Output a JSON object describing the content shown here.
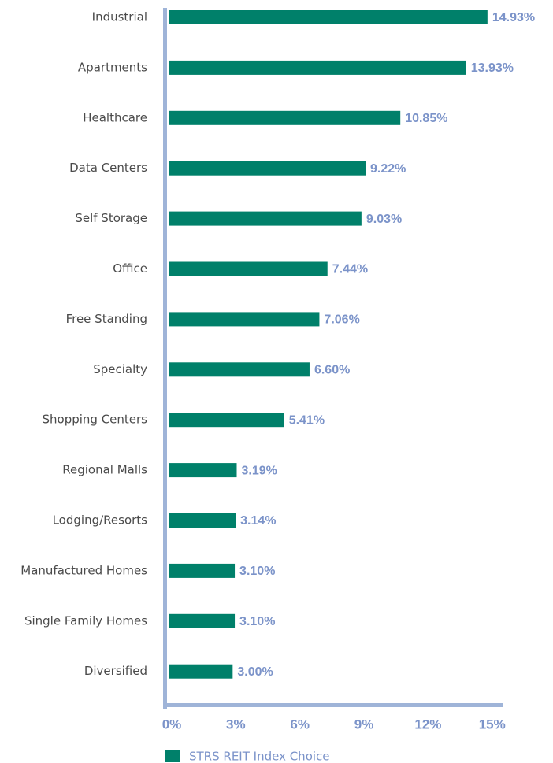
{
  "chart_data": {
    "type": "bar",
    "orientation": "horizontal",
    "categories": [
      "Industrial",
      "Apartments",
      "Healthcare",
      "Data Centers",
      "Self Storage",
      "Office",
      "Free Standing",
      "Specialty",
      "Shopping Centers",
      "Regional Malls",
      "Lodging/Resorts",
      "Manufactured Homes",
      "Single Family Homes",
      "Diversified"
    ],
    "series": [
      {
        "name": "STRS REIT Index Choice",
        "color": "#00806a",
        "values": [
          14.93,
          13.93,
          10.85,
          9.22,
          9.03,
          7.44,
          7.06,
          6.6,
          5.41,
          3.19,
          3.14,
          3.1,
          3.1,
          3.0
        ],
        "value_labels": [
          "14.93%",
          "13.93%",
          "10.85%",
          "9.22%",
          "9.03%",
          "7.44%",
          "7.06%",
          "6.60%",
          "5.41%",
          "3.19%",
          "3.14%",
          "3.10%",
          "3.10%",
          "3.00%"
        ]
      }
    ],
    "xlim": [
      0,
      15.6
    ],
    "xticks": [
      {
        "value": 0,
        "label": "0%"
      },
      {
        "value": 3,
        "label": "3%"
      },
      {
        "value": 6,
        "label": "6%"
      },
      {
        "value": 9,
        "label": "9%"
      },
      {
        "value": 12,
        "label": "12%"
      },
      {
        "value": 15,
        "label": "15%"
      }
    ],
    "grid": false,
    "legend": "bottom-left"
  }
}
